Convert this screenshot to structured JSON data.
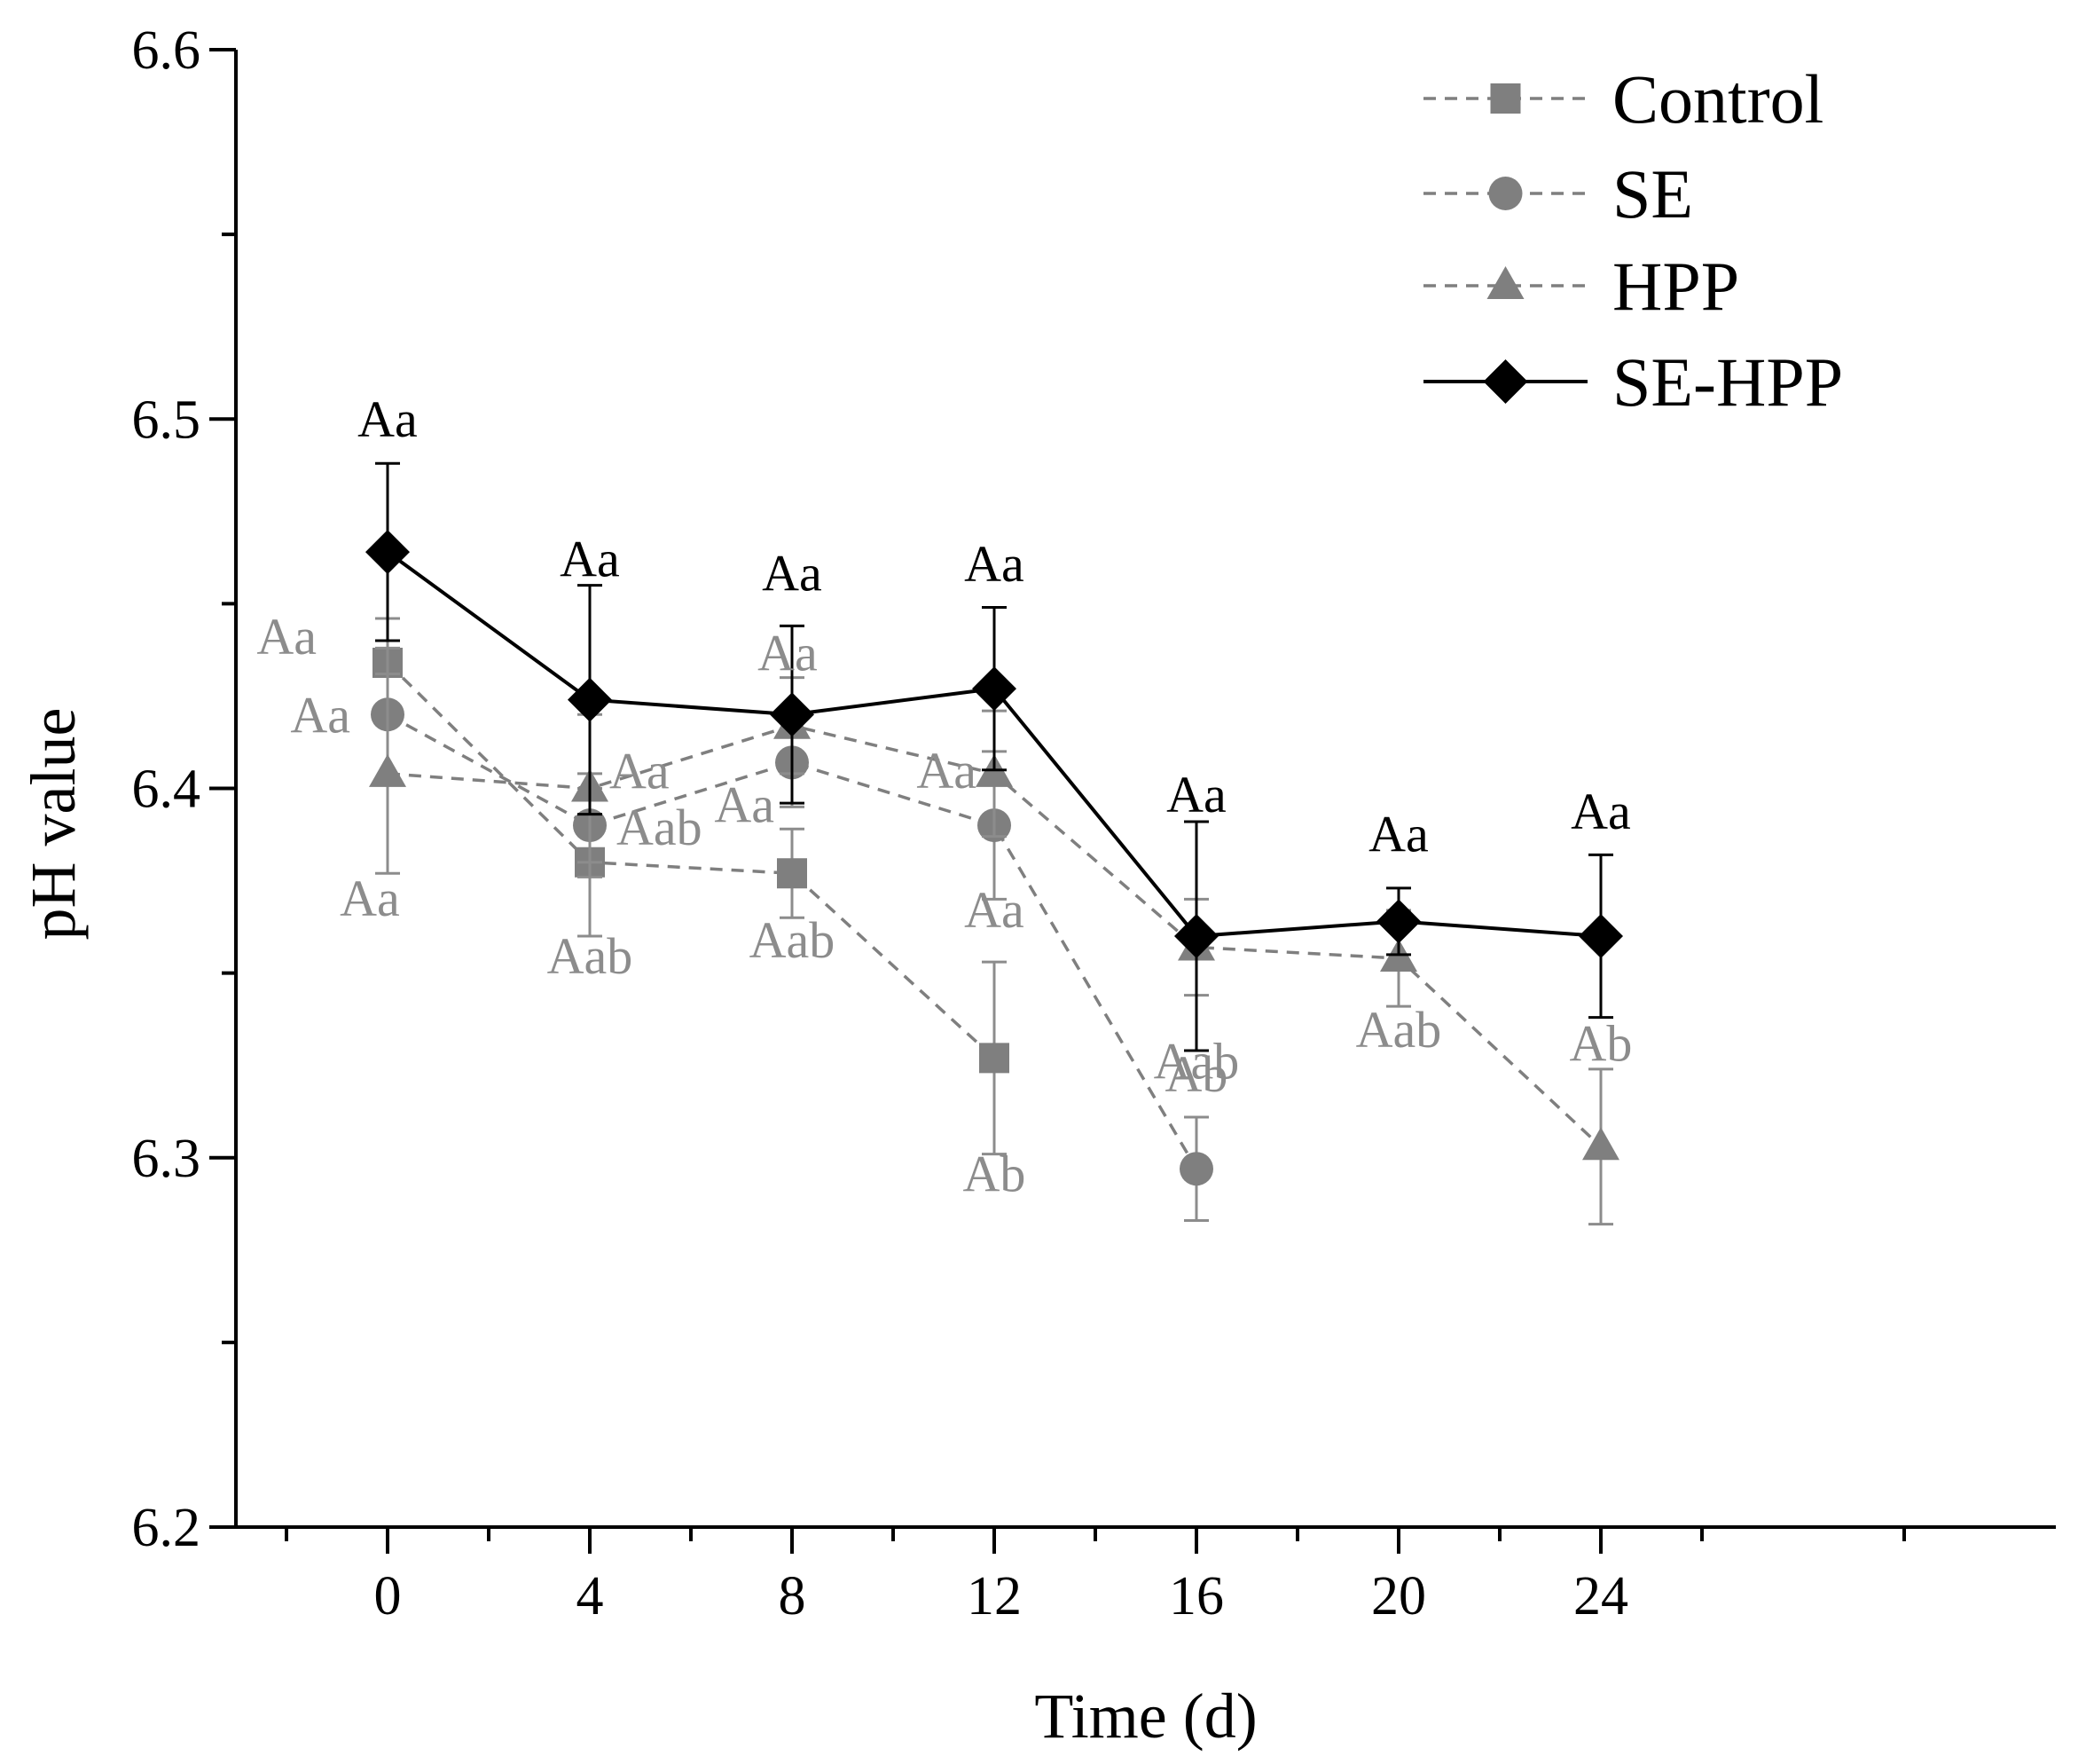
{
  "chart_data": {
    "type": "line",
    "xlabel": "Time (d)",
    "ylabel": "pH value",
    "xlim": [
      -3,
      33
    ],
    "ylim": [
      6.2,
      6.6
    ],
    "x": [
      0,
      4,
      8,
      12,
      16,
      20,
      24
    ],
    "xticks": [
      "0",
      "4",
      "8",
      "12",
      "16",
      "20",
      "24"
    ],
    "yticks": [
      "6.2",
      "6.3",
      "6.4",
      "6.5",
      "6.6"
    ],
    "legend_position": "top-right",
    "series": [
      {
        "name": "Control",
        "marker": "square",
        "line_style": "dashed",
        "color": "#7f7f7f",
        "x": [
          0,
          4,
          8,
          12
        ],
        "values": [
          6.434,
          6.38,
          6.377,
          6.327
        ],
        "errors": [
          0.012,
          0.02,
          0.012,
          0.026
        ],
        "labels": [
          "Aa",
          "Aab",
          "Aab",
          "Ab"
        ]
      },
      {
        "name": "SE",
        "marker": "circle",
        "line_style": "dashed",
        "color": "#7f7f7f",
        "x": [
          0,
          4,
          8,
          12,
          16
        ],
        "values": [
          6.42,
          6.39,
          6.407,
          6.39,
          6.297
        ],
        "errors": [
          0.018,
          0.014,
          0.012,
          0.02,
          0.014
        ],
        "labels": [
          "Aa",
          "Aab",
          "Aa",
          "Aa",
          "Ab"
        ]
      },
      {
        "name": "HPP",
        "marker": "triangle",
        "line_style": "dashed",
        "color": "#7f7f7f",
        "x": [
          0,
          4,
          8,
          12,
          16,
          20,
          24
        ],
        "values": [
          6.404,
          6.4,
          6.417,
          6.404,
          6.357,
          6.354,
          6.303
        ],
        "errors": [
          0.027,
          0.02,
          0.013,
          0.017,
          0.013,
          0.013,
          0.021
        ],
        "labels": [
          "Aa",
          "Aa",
          "Aa",
          "Aa",
          "Aab",
          "Aab",
          "Ab"
        ]
      },
      {
        "name": "SE-HPP",
        "marker": "diamond",
        "line_style": "solid",
        "color": "#000000",
        "x": [
          0,
          4,
          8,
          12,
          16,
          20,
          24
        ],
        "values": [
          6.464,
          6.424,
          6.42,
          6.427,
          6.36,
          6.364,
          6.36
        ],
        "errors": [
          0.024,
          0.031,
          0.024,
          0.022,
          0.031,
          0.009,
          0.022
        ],
        "labels": [
          "Aa",
          "Aa",
          "Aa",
          "Aa",
          "Aa",
          "Aa",
          "Aa"
        ]
      }
    ]
  }
}
